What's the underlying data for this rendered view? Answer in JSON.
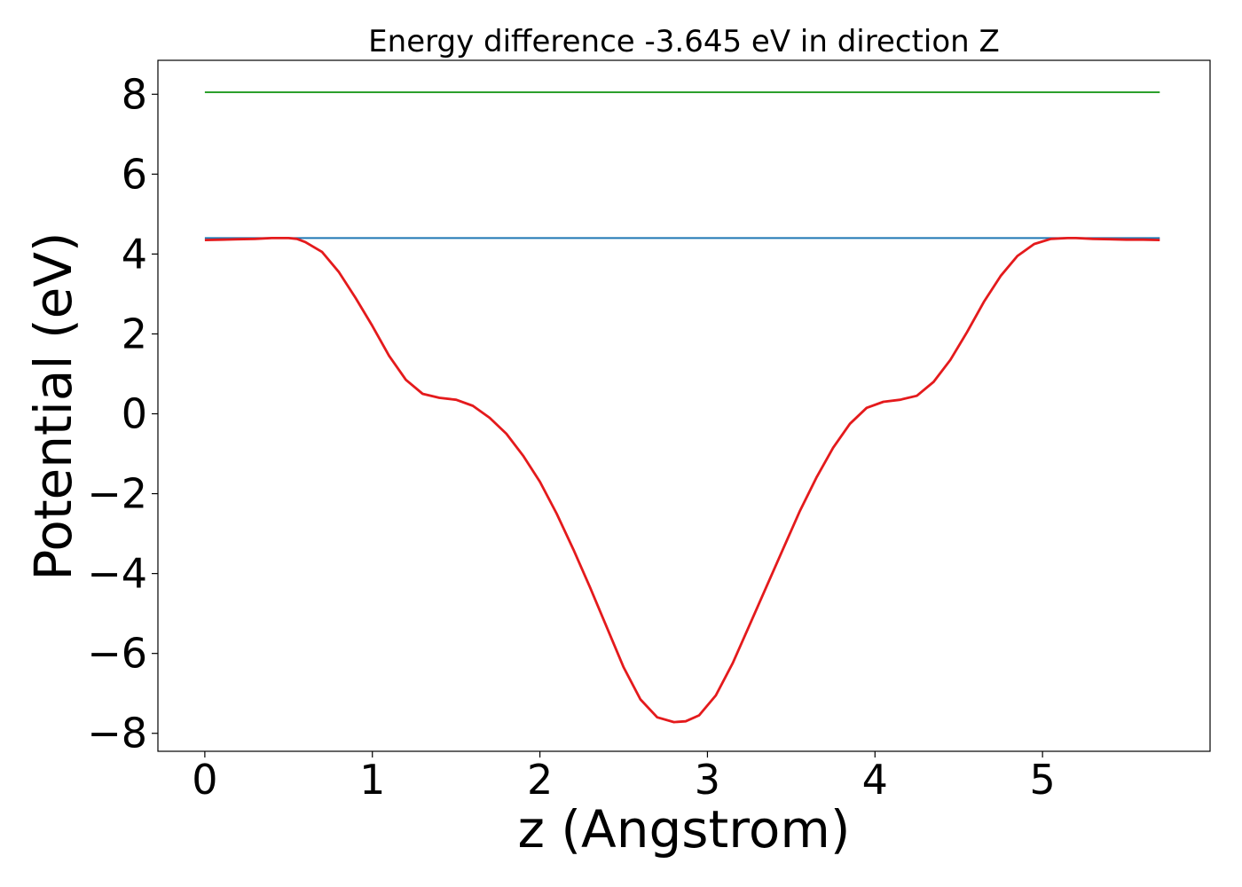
{
  "chart_data": {
    "type": "line",
    "title": "Energy difference -3.645 eV in direction Z",
    "xlabel": "z (Angstrom)",
    "ylabel": "Potential (eV)",
    "xlim": [
      -0.28,
      6.0
    ],
    "ylim": [
      -8.45,
      8.85
    ],
    "xticks": [
      0,
      1,
      2,
      3,
      4,
      5
    ],
    "xtick_labels": [
      "0",
      "1",
      "2",
      "3",
      "4",
      "5"
    ],
    "yticks": [
      -8,
      -6,
      -4,
      -2,
      0,
      2,
      4,
      6,
      8
    ],
    "ytick_labels": [
      "−8",
      "−6",
      "−4",
      "−2",
      "0",
      "2",
      "4",
      "6",
      "8"
    ],
    "grid": false,
    "legend": "none",
    "series": [
      {
        "color": "#2ca02c",
        "x": [
          0,
          5.7
        ],
        "y": [
          8.05,
          8.05
        ]
      },
      {
        "color": "#1f77b4",
        "x": [
          0,
          5.7
        ],
        "y": [
          4.4,
          4.4
        ]
      },
      {
        "color": "#e41a1c",
        "x": [
          0,
          0.1,
          0.2,
          0.3,
          0.4,
          0.5,
          0.55,
          0.6,
          0.7,
          0.8,
          0.9,
          1.0,
          1.1,
          1.2,
          1.3,
          1.4,
          1.5,
          1.6,
          1.7,
          1.8,
          1.9,
          2.0,
          2.1,
          2.2,
          2.3,
          2.4,
          2.5,
          2.6,
          2.7,
          2.8,
          2.87,
          2.95,
          3.05,
          3.15,
          3.25,
          3.35,
          3.45,
          3.55,
          3.65,
          3.75,
          3.85,
          3.95,
          4.05,
          4.15,
          4.25,
          4.35,
          4.45,
          4.55,
          4.65,
          4.75,
          4.85,
          4.95,
          5.05,
          5.15,
          5.2,
          5.3,
          5.4,
          5.5,
          5.6,
          5.7
        ],
        "y": [
          4.35,
          4.36,
          4.37,
          4.38,
          4.4,
          4.4,
          4.38,
          4.3,
          4.05,
          3.55,
          2.9,
          2.2,
          1.45,
          0.85,
          0.5,
          0.4,
          0.35,
          0.2,
          -0.1,
          -0.5,
          -1.05,
          -1.7,
          -2.5,
          -3.4,
          -4.35,
          -5.35,
          -6.35,
          -7.15,
          -7.6,
          -7.72,
          -7.7,
          -7.55,
          -7.05,
          -6.25,
          -5.3,
          -4.35,
          -3.4,
          -2.45,
          -1.6,
          -0.85,
          -0.25,
          0.15,
          0.3,
          0.35,
          0.45,
          0.8,
          1.35,
          2.05,
          2.8,
          3.45,
          3.95,
          4.25,
          4.38,
          4.4,
          4.4,
          4.38,
          4.37,
          4.36,
          4.36,
          4.35
        ]
      }
    ]
  }
}
